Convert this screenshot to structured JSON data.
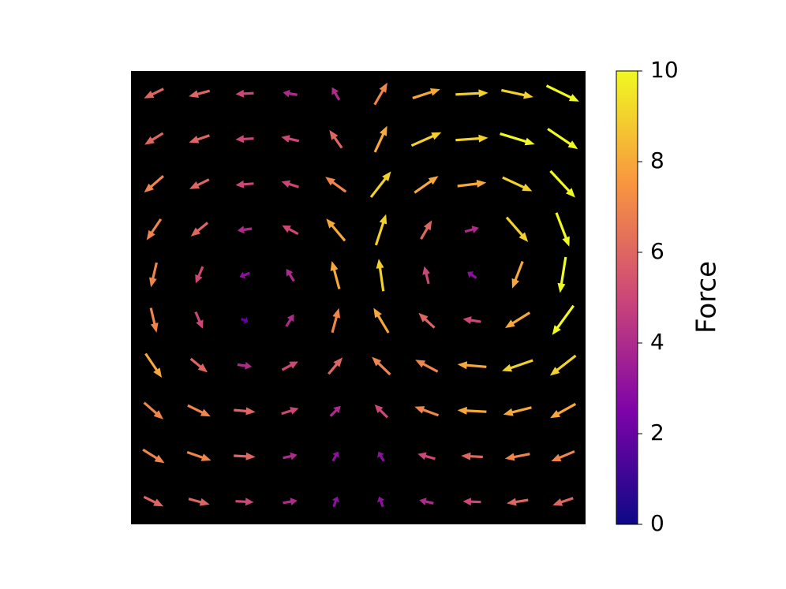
{
  "chart_data": {
    "type": "quiver",
    "colorbar_label": "Force",
    "clim": [
      0,
      10
    ],
    "cbar_ticks": [
      0,
      2,
      4,
      6,
      8,
      10
    ],
    "colormap": [
      "#0d0887",
      "#7e03a8",
      "#cc4778",
      "#f89540",
      "#f0f921"
    ],
    "background": "#000000",
    "x": [
      0,
      1,
      2,
      3,
      4,
      5,
      6,
      7,
      8,
      9
    ],
    "y": [
      0,
      1,
      2,
      3,
      4,
      5,
      6,
      7,
      8,
      9
    ],
    "xlim": [
      -0.5,
      9.5
    ],
    "ylim": [
      9.5,
      -0.5
    ],
    "magnitudes": [
      [
        6,
        6,
        5,
        4,
        4,
        7,
        8,
        9,
        9,
        10
      ],
      [
        6,
        6,
        5,
        5,
        6,
        8,
        9,
        9,
        10,
        10
      ],
      [
        7,
        6,
        5,
        5,
        7,
        9,
        8,
        8,
        9,
        10
      ],
      [
        7,
        6,
        4,
        5,
        8,
        9,
        6,
        4,
        9,
        10
      ],
      [
        7,
        5,
        3,
        4,
        8,
        9,
        5,
        3,
        8,
        10
      ],
      [
        7,
        5,
        2,
        4,
        7,
        8,
        6,
        5,
        8,
        10
      ],
      [
        8,
        6,
        4,
        5,
        6,
        7,
        7,
        8,
        9,
        9
      ],
      [
        7,
        7,
        6,
        5,
        4,
        5,
        7,
        8,
        8,
        8
      ],
      [
        7,
        7,
        6,
        4,
        3,
        3,
        5,
        6,
        7,
        7
      ],
      [
        6,
        6,
        5,
        4,
        3,
        3,
        4,
        5,
        6,
        6
      ]
    ],
    "angles": [
      [
        206,
        195,
        183,
        170,
        120,
        60,
        18,
        3,
        -12,
        -26
      ],
      [
        212,
        199,
        183,
        167,
        125,
        65,
        24,
        4,
        -17,
        -34
      ],
      [
        221,
        206,
        185,
        162,
        144,
        52,
        35,
        7,
        -25,
        -47
      ],
      [
        236,
        219,
        188,
        152,
        130,
        72,
        60,
        16,
        -49,
        -69
      ],
      [
        257,
        247,
        202,
        122,
        105,
        98,
        104,
        146,
        -111,
        -99
      ],
      [
        283,
        293,
        338,
        58,
        75,
        121,
        137,
        171,
        -148,
        -126
      ],
      [
        304,
        321,
        352,
        28,
        50,
        136,
        152,
        175,
        -161,
        -142
      ],
      [
        319,
        334,
        355,
        18,
        45,
        135,
        160,
        177,
        -166,
        -151
      ],
      [
        328,
        341,
        357,
        13,
        60,
        120,
        164,
        177,
        -169,
        -157
      ],
      [
        334,
        345,
        357,
        10,
        70,
        110,
        167,
        178,
        -171,
        -161
      ]
    ]
  }
}
